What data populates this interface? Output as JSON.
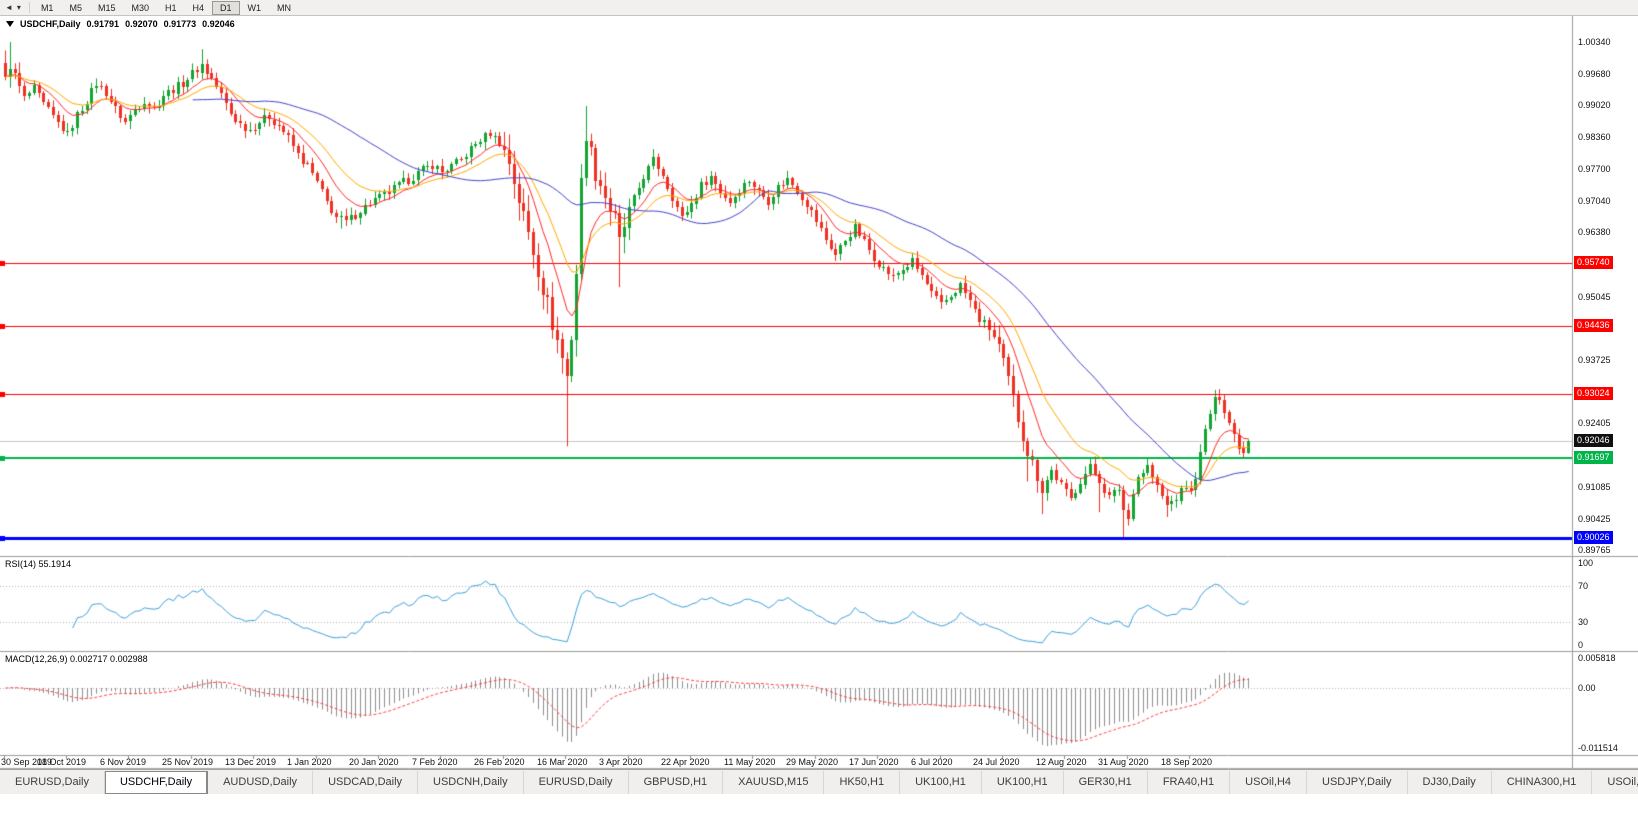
{
  "toolbar": {
    "timeframes": [
      "M1",
      "M5",
      "M15",
      "M30",
      "H1",
      "H4",
      "D1",
      "W1",
      "MN"
    ],
    "active_timeframe": "D1"
  },
  "chart": {
    "title": {
      "symbol": "USDCHF,Daily",
      "open": "0.91791",
      "high": "0.92070",
      "low": "0.91773",
      "close": "0.92046"
    },
    "rsi_header": "RSI(14) 55.1914",
    "macd_header": "MACD(12,26,9) 0.002717 0.002988"
  },
  "tabs": [
    {
      "label": "EURUSD,Daily",
      "active": false
    },
    {
      "label": "USDCHF,Daily",
      "active": true
    },
    {
      "label": "AUDUSD,Daily",
      "active": false
    },
    {
      "label": "USDCAD,Daily",
      "active": false
    },
    {
      "label": "USDCNH,Daily",
      "active": false
    },
    {
      "label": "EURUSD,Daily",
      "active": false
    },
    {
      "label": "GBPUSD,H1",
      "active": false
    },
    {
      "label": "XAUUSD,M15",
      "active": false
    },
    {
      "label": "HK50,H1",
      "active": false
    },
    {
      "label": "UK100,H1",
      "active": false
    },
    {
      "label": "UK100,H1",
      "active": false
    },
    {
      "label": "GER30,H1",
      "active": false
    },
    {
      "label": "FRA40,H1",
      "active": false
    },
    {
      "label": "USOil,H4",
      "active": false
    },
    {
      "label": "USDJPY,Daily",
      "active": false
    },
    {
      "label": "DJ30,Daily",
      "active": false
    },
    {
      "label": "CHINA300,H1",
      "active": false
    },
    {
      "label": "USOil,H",
      "active": false
    }
  ],
  "chart_data": {
    "type": "candlestick",
    "symbol": "USDCHF",
    "period": "Daily",
    "current_bar": {
      "open": 0.91791,
      "high": 0.9207,
      "low": 0.91773,
      "close": 0.92046
    },
    "bars_total": 260,
    "y_axis": {
      "tick_labels": [
        "1.00340",
        "0.99680",
        "0.99020",
        "0.98360",
        "0.97700",
        "0.97040",
        "0.96380",
        "0.95045",
        "0.93725",
        "0.92405",
        "0.91085",
        "0.90425",
        "0.89765"
      ],
      "range": [
        0.8965,
        1.0063
      ]
    },
    "x_axis": {
      "tick_labels": [
        "30 Sep 2019",
        "18 Oct 2019",
        "6 Nov 2019",
        "25 Nov 2019",
        "13 Dec 2019",
        "1 Jan 2020",
        "20 Jan 2020",
        "7 Feb 2020",
        "26 Feb 2020",
        "16 Mar 2020",
        "3 Apr 2020",
        "22 Apr 2020",
        "11 May 2020",
        "29 May 2020",
        "17 Jun 2020",
        "6 Jul 2020",
        "24 Jul 2020",
        "12 Aug 2020",
        "31 Aug 2020",
        "18 Sep 2020"
      ]
    },
    "line_labels": [
      {
        "text": "0.95740",
        "price": 0.9574,
        "bg": "#ff0000"
      },
      {
        "text": "0.94436",
        "price": 0.94436,
        "bg": "#ff0000"
      },
      {
        "text": "0.93024",
        "price": 0.93024,
        "bg": "#ff0000"
      },
      {
        "text": "0.92046",
        "price": 0.92046,
        "bg": "#101010"
      },
      {
        "text": "0.91697",
        "price": 0.91697,
        "bg": "#00b44a"
      },
      {
        "text": "0.90026",
        "price": 0.90026,
        "bg": "#0000ff"
      }
    ],
    "hlines": [
      {
        "price": 0.9574,
        "color": "#ff0000",
        "width": 1
      },
      {
        "price": 0.94436,
        "color": "#ff0000",
        "width": 1
      },
      {
        "price": 0.93024,
        "color": "#ff0000",
        "width": 1
      },
      {
        "price": 0.91697,
        "color": "#00b44a",
        "width": 2
      },
      {
        "price": 0.90026,
        "color": "#0000ff",
        "width": 3
      }
    ],
    "current_price_line": {
      "price": 0.92046,
      "color": "#c8c8c8"
    },
    "price_path": [
      [
        0,
        0.995
      ],
      [
        1,
        0.9992
      ],
      [
        2,
        0.9958
      ],
      [
        4,
        0.9916
      ],
      [
        6,
        0.9936
      ],
      [
        8,
        0.9904
      ],
      [
        10,
        0.9878
      ],
      [
        13,
        0.9842
      ],
      [
        15,
        0.9882
      ],
      [
        17,
        0.9912
      ],
      [
        19,
        0.9948
      ],
      [
        21,
        0.9928
      ],
      [
        23,
        0.9894
      ],
      [
        25,
        0.9868
      ],
      [
        27,
        0.9892
      ],
      [
        29,
        0.9912
      ],
      [
        31,
        0.9896
      ],
      [
        33,
        0.9924
      ],
      [
        35,
        0.9936
      ],
      [
        37,
        0.995
      ],
      [
        39,
        0.9968
      ],
      [
        41,
        0.9988
      ],
      [
        43,
        0.9958
      ],
      [
        45,
        0.9924
      ],
      [
        47,
        0.9886
      ],
      [
        49,
        0.9862
      ],
      [
        51,
        0.9852
      ],
      [
        53,
        0.9868
      ],
      [
        55,
        0.9878
      ],
      [
        57,
        0.986
      ],
      [
        59,
        0.9834
      ],
      [
        61,
        0.98
      ],
      [
        63,
        0.9776
      ],
      [
        65,
        0.9742
      ],
      [
        67,
        0.97
      ],
      [
        69,
        0.967
      ],
      [
        71,
        0.966
      ],
      [
        73,
        0.9676
      ],
      [
        75,
        0.9692
      ],
      [
        77,
        0.9706
      ],
      [
        79,
        0.9716
      ],
      [
        81,
        0.9728
      ],
      [
        83,
        0.9742
      ],
      [
        85,
        0.9754
      ],
      [
        87,
        0.9768
      ],
      [
        89,
        0.9778
      ],
      [
        91,
        0.9764
      ],
      [
        93,
        0.9776
      ],
      [
        95,
        0.9788
      ],
      [
        97,
        0.9812
      ],
      [
        99,
        0.983
      ],
      [
        101,
        0.9844
      ],
      [
        103,
        0.9826
      ],
      [
        105,
        0.9784
      ],
      [
        107,
        0.9706
      ],
      [
        109,
        0.9636
      ],
      [
        111,
        0.9562
      ],
      [
        113,
        0.9488
      ],
      [
        115,
        0.9414
      ],
      [
        117,
        0.9338
      ],
      [
        118,
        0.9424
      ],
      [
        119,
        0.9556
      ],
      [
        120,
        0.9738
      ],
      [
        121,
        0.9848
      ],
      [
        122,
        0.98
      ],
      [
        123,
        0.9766
      ],
      [
        125,
        0.9714
      ],
      [
        127,
        0.9662
      ],
      [
        128,
        0.9614
      ],
      [
        129,
        0.965
      ],
      [
        131,
        0.9706
      ],
      [
        133,
        0.9754
      ],
      [
        135,
        0.9788
      ],
      [
        137,
        0.9758
      ],
      [
        139,
        0.9712
      ],
      [
        141,
        0.9668
      ],
      [
        143,
        0.9698
      ],
      [
        145,
        0.9736
      ],
      [
        147,
        0.9754
      ],
      [
        149,
        0.9724
      ],
      [
        151,
        0.9702
      ],
      [
        153,
        0.9728
      ],
      [
        155,
        0.9746
      ],
      [
        157,
        0.9722
      ],
      [
        159,
        0.9704
      ],
      [
        161,
        0.9732
      ],
      [
        163,
        0.9748
      ],
      [
        165,
        0.9726
      ],
      [
        167,
        0.9698
      ],
      [
        169,
        0.9662
      ],
      [
        171,
        0.9624
      ],
      [
        173,
        0.9592
      ],
      [
        175,
        0.9622
      ],
      [
        177,
        0.9648
      ],
      [
        179,
        0.9618
      ],
      [
        181,
        0.9586
      ],
      [
        183,
        0.9562
      ],
      [
        185,
        0.9544
      ],
      [
        187,
        0.9562
      ],
      [
        189,
        0.9578
      ],
      [
        191,
        0.9548
      ],
      [
        193,
        0.9512
      ],
      [
        195,
        0.9486
      ],
      [
        197,
        0.9506
      ],
      [
        199,
        0.9528
      ],
      [
        201,
        0.9494
      ],
      [
        203,
        0.9456
      ],
      [
        205,
        0.944
      ],
      [
        207,
        0.94
      ],
      [
        209,
        0.933
      ],
      [
        211,
        0.9252
      ],
      [
        213,
        0.9182
      ],
      [
        215,
        0.9132
      ],
      [
        216,
        0.9104
      ],
      [
        218,
        0.9142
      ],
      [
        220,
        0.9112
      ],
      [
        222,
        0.9084
      ],
      [
        224,
        0.9122
      ],
      [
        226,
        0.915
      ],
      [
        228,
        0.9122
      ],
      [
        230,
        0.9086
      ],
      [
        232,
        0.9106
      ],
      [
        233,
        0.9062
      ],
      [
        234,
        0.9042
      ],
      [
        235,
        0.9102
      ],
      [
        236,
        0.913
      ],
      [
        238,
        0.9152
      ],
      [
        240,
        0.9108
      ],
      [
        242,
        0.907
      ],
      [
        244,
        0.9086
      ],
      [
        246,
        0.9112
      ],
      [
        247,
        0.9096
      ],
      [
        248,
        0.9132
      ],
      [
        249,
        0.9176
      ],
      [
        250,
        0.9226
      ],
      [
        251,
        0.9262
      ],
      [
        252,
        0.9288
      ],
      [
        253,
        0.9298
      ],
      [
        254,
        0.9272
      ],
      [
        255,
        0.9242
      ],
      [
        256,
        0.9216
      ],
      [
        257,
        0.9196
      ],
      [
        258,
        0.91791
      ],
      [
        259,
        0.92046
      ]
    ],
    "wick_overrides": [
      {
        "i": 1,
        "h": 1.0034
      },
      {
        "i": 13,
        "l": 0.9838
      },
      {
        "i": 41,
        "h": 1.0019
      },
      {
        "i": 70,
        "l": 0.9646
      },
      {
        "i": 101,
        "h": 0.9852
      },
      {
        "i": 117,
        "l": 0.9193
      },
      {
        "i": 121,
        "h": 0.9901
      },
      {
        "i": 128,
        "l": 0.9524
      },
      {
        "i": 213,
        "l": 0.912
      },
      {
        "i": 216,
        "l": 0.9052
      },
      {
        "i": 228,
        "l": 0.9056
      },
      {
        "i": 233,
        "l": 0.8998
      },
      {
        "i": 242,
        "l": 0.9046
      },
      {
        "i": 253,
        "h": 0.9312
      },
      {
        "i": 259,
        "h": 0.9207,
        "l": 0.91773
      }
    ],
    "high_vol_zones": [
      [
        0,
        3,
        2.0
      ],
      [
        104,
        130,
        2.4
      ],
      [
        205,
        216,
        1.6
      ]
    ],
    "moving_averages": [
      {
        "type": "ema",
        "period": 9,
        "color": "#ff2a2a"
      },
      {
        "type": "ema",
        "period": 18,
        "color": "#ffaa00"
      },
      {
        "type": "sma",
        "period": 40,
        "color": "#4444cc"
      }
    ],
    "rsi": {
      "period": 14,
      "current": 55.1914,
      "color": "#3fa3dc",
      "levels": [
        70,
        30
      ],
      "axis_labels": [
        "100",
        "70",
        "30",
        "0"
      ],
      "range": [
        0,
        100
      ]
    },
    "macd": {
      "fast": 12,
      "slow": 26,
      "signal_period": 9,
      "current_macd": 0.002717,
      "current_signal": 0.002988,
      "axis_labels": [
        {
          "text": "0.005818",
          "value": 0.005818
        },
        {
          "text": "0.00",
          "value": 0
        },
        {
          "text": "-0.011514",
          "value": -0.011514
        }
      ],
      "hist_color": "#909090",
      "signal_color": "#ff4040"
    },
    "colors": {
      "background": "#ffffff",
      "bull": "#14a432",
      "bear": "#ef3124",
      "axis_text": "#000000",
      "pane_separator": "#9c9a96"
    }
  }
}
